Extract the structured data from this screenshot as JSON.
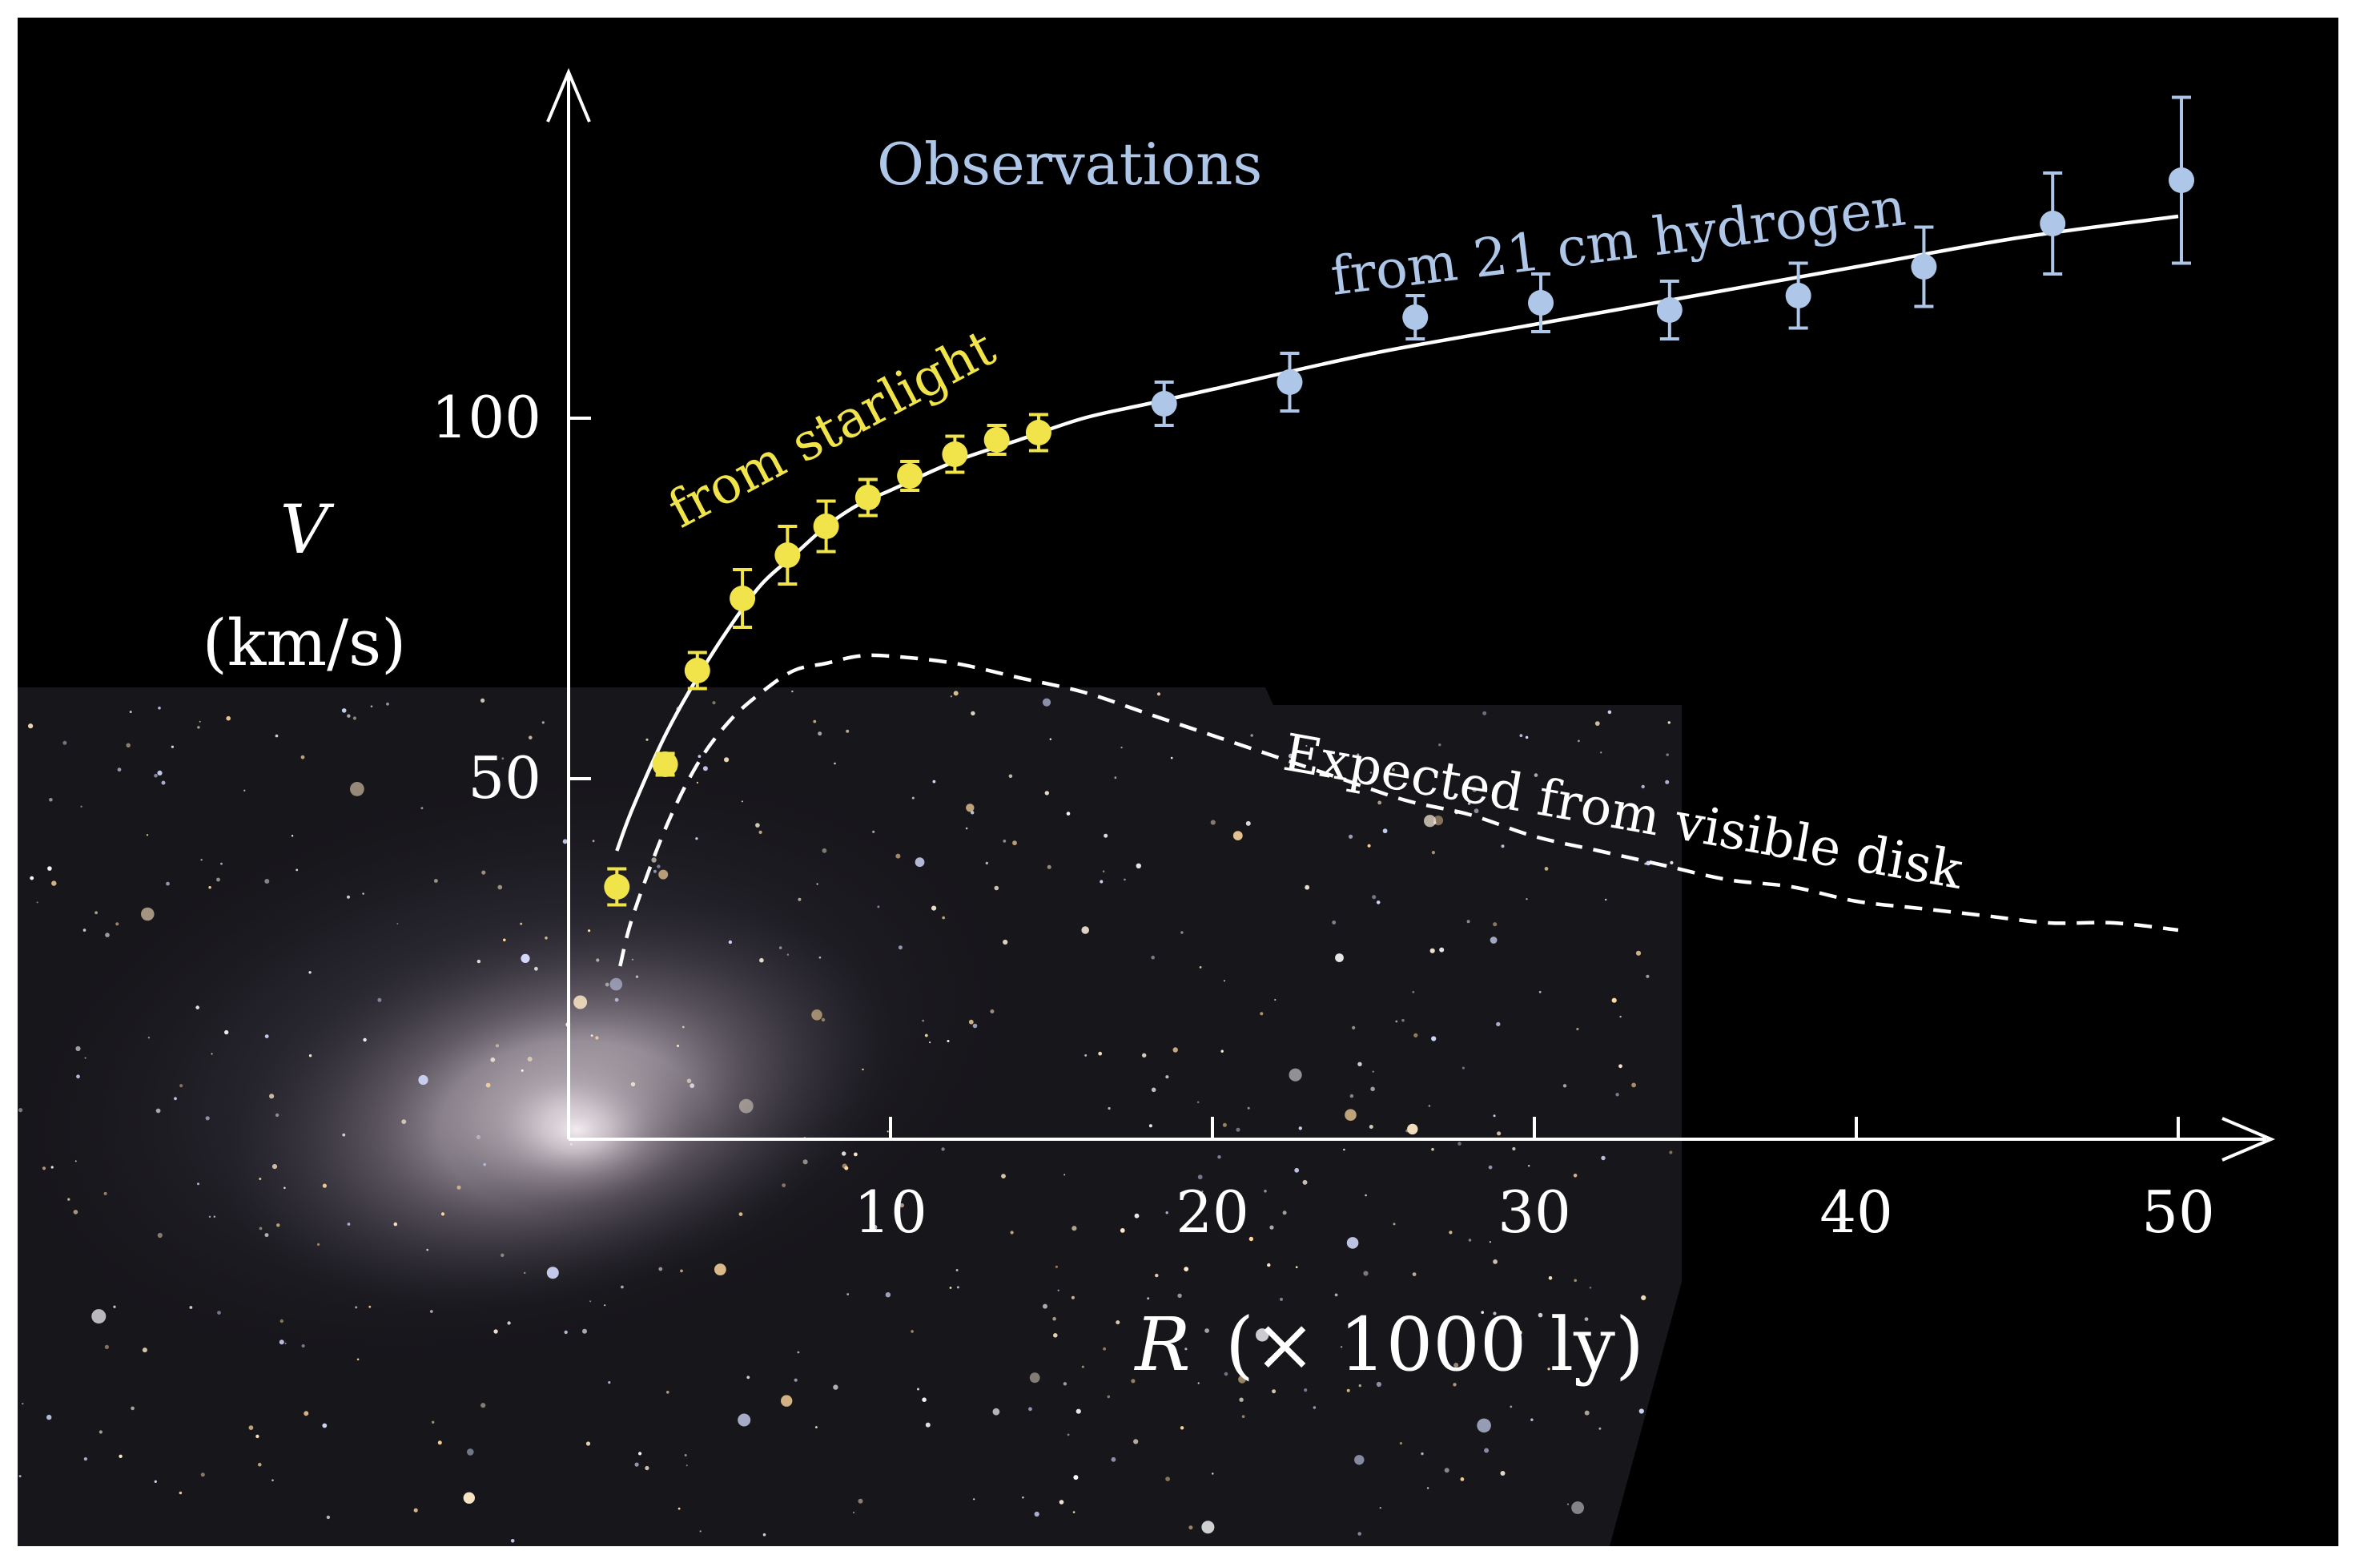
{
  "colors": {
    "background": "#000000",
    "frame": "#ffffff",
    "axis": "#ffffff",
    "starlight": "#f0e44a",
    "hydrogen": "#aec6e8",
    "fit_curve": "#ffffff",
    "expected_curve": "#ffffff",
    "galaxy_core": "#d8d0d6"
  },
  "chart_data": {
    "type": "scatter",
    "title": "",
    "xlabel": "R (× 1000 ly)",
    "xlabel_var": "R",
    "xlabel_unit": "(× 1000 ly)",
    "ylabel": "V (km/s)",
    "ylabel_var": "V",
    "ylabel_unit": "(km/s)",
    "xlim": [
      0,
      52
    ],
    "ylim": [
      0,
      147
    ],
    "x_ticks": [
      10,
      20,
      30,
      40,
      50
    ],
    "x_tick_labels": [
      "10",
      "20",
      "30",
      "40",
      "50"
    ],
    "y_ticks": [
      50,
      100
    ],
    "y_tick_labels": [
      "50",
      "100"
    ],
    "grid": false,
    "annotations": {
      "observations": "Observations",
      "starlight": "from  starlight",
      "hydrogen": "from 21 cm hydrogen",
      "expected": "Expected from visible disk"
    },
    "series": [
      {
        "name": "from starlight",
        "kind": "points_with_error",
        "color_key": "starlight",
        "points": [
          {
            "x": 1.5,
            "y": 35,
            "err": 2.5
          },
          {
            "x": 3.0,
            "y": 52,
            "err": 1.5
          },
          {
            "x": 4.0,
            "y": 65,
            "err": 2.5
          },
          {
            "x": 5.4,
            "y": 75,
            "err": 4
          },
          {
            "x": 6.8,
            "y": 81,
            "err": 4
          },
          {
            "x": 8.0,
            "y": 85,
            "err": 3.5
          },
          {
            "x": 9.3,
            "y": 89,
            "err": 2.5
          },
          {
            "x": 10.6,
            "y": 92,
            "err": 2
          },
          {
            "x": 12.0,
            "y": 95,
            "err": 2.5
          },
          {
            "x": 13.3,
            "y": 97,
            "err": 2
          },
          {
            "x": 14.6,
            "y": 98,
            "err": 2.5
          }
        ]
      },
      {
        "name": "from 21 cm hydrogen",
        "kind": "points_with_error",
        "color_key": "hydrogen",
        "points": [
          {
            "x": 18.5,
            "y": 102,
            "err": 3
          },
          {
            "x": 22.4,
            "y": 105,
            "err": 4
          },
          {
            "x": 26.3,
            "y": 114,
            "err": 3
          },
          {
            "x": 30.2,
            "y": 116,
            "err": 4
          },
          {
            "x": 34.2,
            "y": 115,
            "err": 4
          },
          {
            "x": 38.2,
            "y": 117,
            "err": 4.5
          },
          {
            "x": 42.1,
            "y": 121,
            "err": 5.5
          },
          {
            "x": 46.1,
            "y": 127,
            "err": 7
          },
          {
            "x": 50.1,
            "y": 133,
            "err": 11.5
          }
        ]
      },
      {
        "name": "Observations fit",
        "kind": "line",
        "style": "solid",
        "color_key": "fit_curve",
        "x": [
          1.5,
          2.0,
          3.0,
          4.0,
          5.0,
          6.0,
          7.0,
          8.0,
          9.0,
          10.0,
          12.0,
          14.0,
          16.0,
          18.0,
          20.0,
          25.0,
          30.0,
          35.0,
          40.0,
          45.0,
          50.0
        ],
        "y": [
          40,
          46,
          56,
          64,
          71,
          77,
          81,
          85,
          88,
          90,
          94,
          97,
          100,
          102,
          104,
          109,
          113,
          117,
          121,
          125,
          128
        ]
      },
      {
        "name": "Expected from visible disk",
        "kind": "line",
        "style": "dashed",
        "color_key": "expected_curve",
        "x": [
          1.6,
          2.0,
          3.0,
          4.0,
          5.0,
          6.0,
          7.0,
          8.0,
          9.0,
          10.0,
          12.0,
          14.0,
          16.0,
          18.0,
          20.0,
          22.0,
          24.0,
          26.0,
          28.0,
          30.0,
          32.0,
          34.0,
          36.0,
          38.0,
          40.0,
          42.0,
          44.0,
          46.0,
          48.0,
          50.0
        ],
        "y": [
          24,
          31,
          43,
          52,
          58,
          62,
          65,
          66,
          67,
          67,
          66,
          64,
          62,
          59,
          56,
          53,
          50,
          47,
          45,
          42,
          40,
          38,
          36,
          35,
          33,
          32,
          31,
          30,
          30,
          29
        ]
      }
    ]
  }
}
